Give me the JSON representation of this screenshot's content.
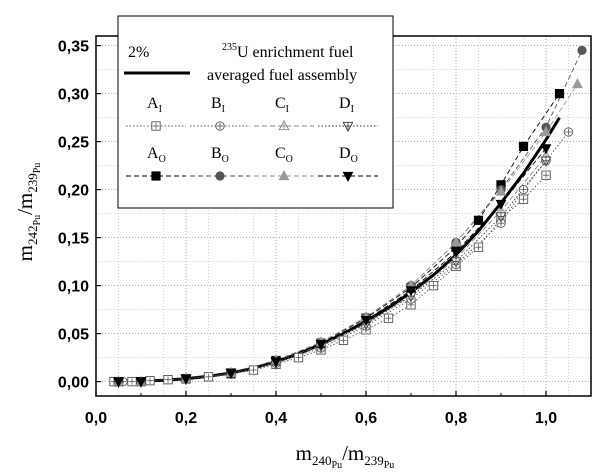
{
  "chart_data": {
    "type": "scatter",
    "title": "",
    "xlabel": {
      "main": "m",
      "sub1": "240",
      "sub1sub": "Pu",
      "slash": "/m",
      "sub2": "239",
      "sub2sub": "Pu"
    },
    "ylabel": {
      "main": "m",
      "sub1": "242",
      "sub1sub": "Pu",
      "slash": "/m",
      "sub2": "239",
      "sub2sub": "Pu"
    },
    "xlim": [
      0.0,
      1.1
    ],
    "ylim": [
      -0.015,
      0.36
    ],
    "x_ticks": [
      {
        "v": 0.0,
        "label": "0,0"
      },
      {
        "v": 0.2,
        "label": "0,2"
      },
      {
        "v": 0.4,
        "label": "0,4"
      },
      {
        "v": 0.6,
        "label": "0,6"
      },
      {
        "v": 0.8,
        "label": "0,8"
      },
      {
        "v": 1.0,
        "label": "1,0"
      }
    ],
    "y_ticks": [
      {
        "v": 0.0,
        "label": "0,00"
      },
      {
        "v": 0.05,
        "label": "0,05"
      },
      {
        "v": 0.1,
        "label": "0,10"
      },
      {
        "v": 0.15,
        "label": "0,15"
      },
      {
        "v": 0.2,
        "label": "0,20"
      },
      {
        "v": 0.25,
        "label": "0,25"
      },
      {
        "v": 0.3,
        "label": "0,30"
      },
      {
        "v": 0.35,
        "label": "0,35"
      }
    ],
    "grid": true,
    "legend": {
      "position": "top-left",
      "enrichment_label": "2%",
      "enrichment_sup": "235",
      "enrichment_text": "U enrichment fuel",
      "average_label": "averaged fuel assembly"
    },
    "average_curve": {
      "x": [
        0.05,
        0.1,
        0.15,
        0.2,
        0.25,
        0.3,
        0.35,
        0.4,
        0.45,
        0.5,
        0.55,
        0.6,
        0.65,
        0.7,
        0.75,
        0.8,
        0.85,
        0.9,
        0.95,
        1.0,
        1.03
      ],
      "y": [
        0.0,
        0.0005,
        0.0015,
        0.003,
        0.0055,
        0.009,
        0.014,
        0.021,
        0.029,
        0.039,
        0.05,
        0.063,
        0.077,
        0.093,
        0.111,
        0.132,
        0.157,
        0.186,
        0.217,
        0.252,
        0.275
      ]
    },
    "series": [
      {
        "name": "A",
        "name_sub": "I",
        "marker": "square-plus",
        "color": "#555555",
        "line": "dotted",
        "x": [
          0.04,
          0.08,
          0.12,
          0.16,
          0.2,
          0.25,
          0.3,
          0.35,
          0.4,
          0.45,
          0.5,
          0.55,
          0.6,
          0.65,
          0.7,
          0.75,
          0.8,
          0.85,
          0.9,
          0.95,
          1.0
        ],
        "y": [
          0.0,
          0.0,
          0.001,
          0.002,
          0.003,
          0.005,
          0.008,
          0.012,
          0.018,
          0.025,
          0.033,
          0.043,
          0.054,
          0.066,
          0.08,
          0.1,
          0.12,
          0.14,
          0.17,
          0.19,
          0.215
        ]
      },
      {
        "name": "B",
        "name_sub": "I",
        "marker": "circle-plus",
        "color": "#555555",
        "line": "dotted",
        "x": [
          0.06,
          0.1,
          0.2,
          0.3,
          0.4,
          0.5,
          0.6,
          0.7,
          0.8,
          0.9,
          0.95,
          1.0,
          1.05
        ],
        "y": [
          0.0,
          0.0,
          0.003,
          0.008,
          0.019,
          0.035,
          0.058,
          0.086,
          0.122,
          0.165,
          0.2,
          0.23,
          0.26
        ]
      },
      {
        "name": "C",
        "name_sub": "I",
        "marker": "triangle-up-plus",
        "color": "#888888",
        "line": "dashed",
        "x": [
          0.05,
          0.1,
          0.2,
          0.3,
          0.4,
          0.5,
          0.6,
          0.7,
          0.8,
          0.9,
          1.0
        ],
        "y": [
          0.0,
          0.0,
          0.003,
          0.009,
          0.021,
          0.038,
          0.06,
          0.09,
          0.128,
          0.178,
          0.235
        ]
      },
      {
        "name": "D",
        "name_sub": "I",
        "marker": "triangle-down-plus",
        "color": "#333333",
        "line": "dotted",
        "x": [
          0.05,
          0.1,
          0.2,
          0.3,
          0.4,
          0.5,
          0.6,
          0.7,
          0.8,
          0.9,
          1.0
        ],
        "y": [
          0.0,
          0.0,
          0.003,
          0.009,
          0.02,
          0.037,
          0.06,
          0.089,
          0.125,
          0.172,
          0.23
        ]
      },
      {
        "name": "A",
        "name_sub": "O",
        "marker": "square",
        "color": "#000000",
        "line": "dashed",
        "x": [
          0.05,
          0.1,
          0.2,
          0.3,
          0.4,
          0.5,
          0.6,
          0.7,
          0.8,
          0.85,
          0.9,
          0.95,
          1.03
        ],
        "y": [
          0.0,
          0.0,
          0.003,
          0.009,
          0.022,
          0.04,
          0.066,
          0.098,
          0.14,
          0.168,
          0.205,
          0.245,
          0.3
        ]
      },
      {
        "name": "B",
        "name_sub": "O",
        "marker": "circle",
        "color": "#555555",
        "line": "dashed",
        "x": [
          0.05,
          0.1,
          0.2,
          0.3,
          0.4,
          0.5,
          0.6,
          0.7,
          0.8,
          0.9,
          1.0,
          1.08
        ],
        "y": [
          0.0,
          0.0,
          0.003,
          0.009,
          0.022,
          0.041,
          0.067,
          0.1,
          0.145,
          0.2,
          0.265,
          0.345
        ]
      },
      {
        "name": "C",
        "name_sub": "O",
        "marker": "triangle-up",
        "color": "#999999",
        "line": "dashed",
        "x": [
          0.05,
          0.1,
          0.2,
          0.3,
          0.4,
          0.5,
          0.6,
          0.7,
          0.8,
          0.9,
          1.0,
          1.07
        ],
        "y": [
          0.0,
          0.0,
          0.003,
          0.009,
          0.022,
          0.041,
          0.067,
          0.1,
          0.145,
          0.198,
          0.26,
          0.31
        ]
      },
      {
        "name": "D",
        "name_sub": "O",
        "marker": "triangle-down",
        "color": "#000000",
        "line": "dashed",
        "x": [
          0.05,
          0.1,
          0.2,
          0.3,
          0.4,
          0.5,
          0.6,
          0.7,
          0.8,
          0.9,
          1.0
        ],
        "y": [
          0.0,
          0.0,
          0.003,
          0.009,
          0.021,
          0.039,
          0.064,
          0.095,
          0.135,
          0.185,
          0.243
        ]
      }
    ]
  }
}
